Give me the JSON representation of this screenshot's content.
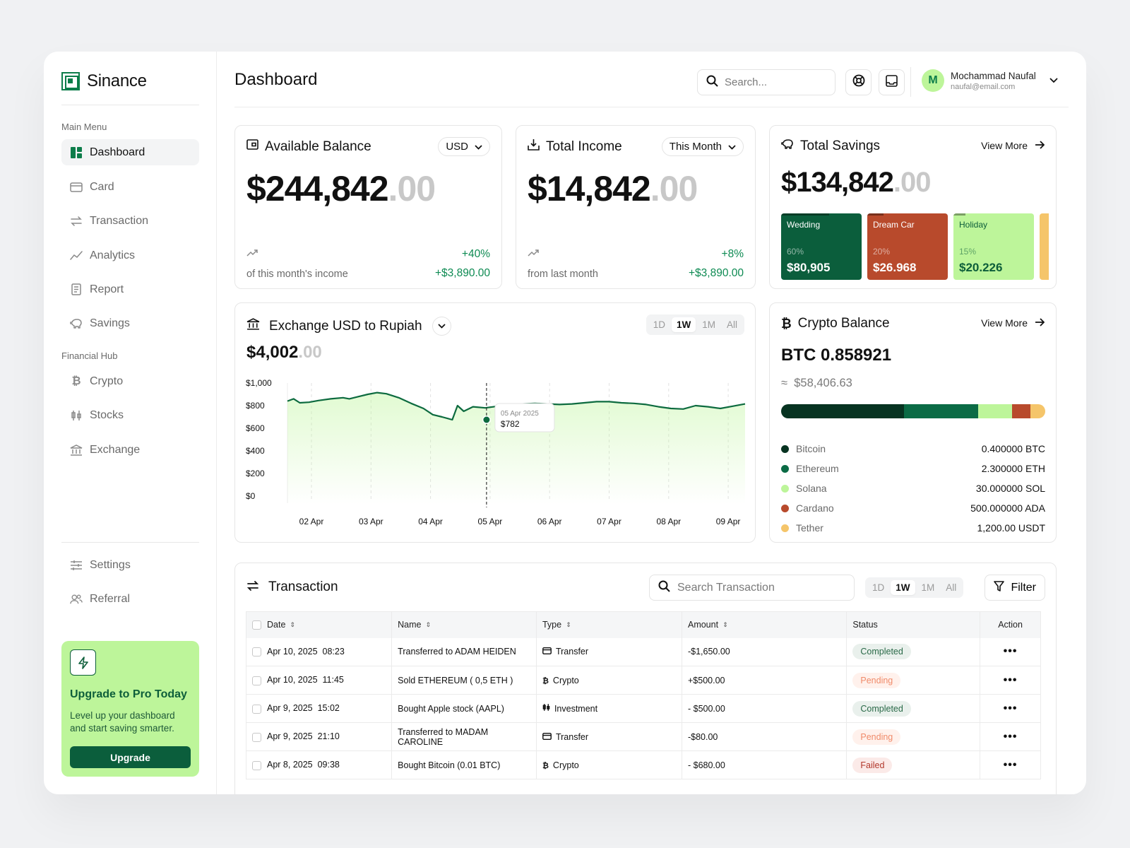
{
  "app": {
    "name": "Sinance"
  },
  "sidebar": {
    "main_title": "Main Menu",
    "main_items": [
      {
        "label": "Dashboard",
        "icon": "dashboard-icon"
      },
      {
        "label": "Card",
        "icon": "card-icon"
      },
      {
        "label": "Transaction",
        "icon": "transfer-icon"
      },
      {
        "label": "Analytics",
        "icon": "analytics-icon"
      },
      {
        "label": "Report",
        "icon": "report-icon"
      },
      {
        "label": "Savings",
        "icon": "piggy-bank-icon"
      }
    ],
    "hub_title": "Financial Hub",
    "hub_items": [
      {
        "label": "Crypto",
        "icon": "bitcoin-icon"
      },
      {
        "label": "Stocks",
        "icon": "candlestick-icon"
      },
      {
        "label": "Exchange",
        "icon": "bank-icon"
      }
    ],
    "bottom_items": [
      {
        "label": "Settings",
        "icon": "sliders-icon"
      },
      {
        "label": "Referral",
        "icon": "users-icon"
      }
    ],
    "upgrade": {
      "title": "Upgrade to Pro Today",
      "description": "Level up your dashboard and start saving smarter.",
      "button": "Upgrade"
    }
  },
  "header": {
    "title": "Dashboard",
    "search_placeholder": "Search...",
    "user": {
      "initial": "M",
      "name": "Mochammad Naufal",
      "email": "naufal@email.com"
    }
  },
  "balance": {
    "title": "Available Balance",
    "currency": "USD",
    "amount": "$244,842",
    "decimals": ".00",
    "change_pct": "+40%",
    "change_amount": "+$3,890.00",
    "caption": "of this month's income"
  },
  "income": {
    "title": "Total Income",
    "period": "This Month",
    "amount": "$14,842",
    "decimals": ".00",
    "change_pct": "+8%",
    "change_amount": "+$3,890.00",
    "caption": "from last month"
  },
  "savings": {
    "title": "Total Savings",
    "view_more": "View More",
    "amount": "$134,842",
    "decimals": ".00",
    "goals": [
      {
        "name": "Wedding",
        "pct": "60%",
        "progress": 0.6,
        "amount": "$80,905",
        "bg": "#0b5e3c",
        "fg": "#ffffff"
      },
      {
        "name": "Dream Car",
        "pct": "20%",
        "progress": 0.2,
        "amount": "$26.968",
        "bg": "#b84a2c",
        "fg": "#ffffff"
      },
      {
        "name": "Holiday",
        "pct": "15%",
        "progress": 0.15,
        "amount": "$20.226",
        "bg": "#bdf59a",
        "fg": "#0d5e3a"
      },
      {
        "name": "",
        "pct": "",
        "progress": 0,
        "amount": "",
        "bg": "#f5c56a",
        "fg": "#111111"
      }
    ]
  },
  "exchange": {
    "title": "Exchange USD to Rupiah",
    "value": "$4,002",
    "decimals": ".00",
    "ranges": [
      "1D",
      "1W",
      "1M",
      "All"
    ],
    "active_range": "1W"
  },
  "chart_data": {
    "type": "area",
    "x": [
      "02 Apr",
      "03 Apr",
      "04 Apr",
      "05 Apr",
      "06 Apr",
      "07 Apr",
      "08 Apr",
      "09 Apr"
    ],
    "yticks": [
      "$1,000",
      "$800",
      "$600",
      "$400",
      "$200",
      "$0"
    ],
    "ylim": [
      0,
      1000
    ],
    "series_points": [
      [
        1.6,
        840
      ],
      [
        1.8,
        860
      ],
      [
        2.0,
        825
      ],
      [
        2.3,
        830
      ],
      [
        2.6,
        845
      ],
      [
        3.0,
        860
      ],
      [
        3.4,
        870
      ],
      [
        3.6,
        860
      ],
      [
        3.9,
        880
      ],
      [
        4.2,
        900
      ],
      [
        4.5,
        915
      ],
      [
        4.8,
        905
      ],
      [
        5.2,
        870
      ],
      [
        5.6,
        820
      ],
      [
        6.0,
        775
      ],
      [
        6.3,
        720
      ],
      [
        6.6,
        700
      ],
      [
        6.93,
        675
      ],
      [
        7.1,
        800
      ],
      [
        7.3,
        750
      ],
      [
        7.6,
        790
      ],
      [
        8.0,
        780
      ],
      [
        8.4,
        795
      ],
      [
        8.8,
        800
      ],
      [
        9.2,
        815
      ],
      [
        9.6,
        820
      ],
      [
        10.0,
        815
      ],
      [
        10.4,
        810
      ],
      [
        10.8,
        815
      ],
      [
        11.2,
        825
      ],
      [
        11.6,
        835
      ],
      [
        12.0,
        835
      ],
      [
        12.4,
        825
      ],
      [
        12.8,
        820
      ],
      [
        13.2,
        810
      ],
      [
        13.6,
        790
      ],
      [
        14.0,
        775
      ],
      [
        14.4,
        770
      ],
      [
        14.8,
        800
      ],
      [
        15.2,
        790
      ],
      [
        15.6,
        775
      ],
      [
        16.0,
        795
      ],
      [
        16.4,
        815
      ]
    ],
    "highlight": {
      "date": "05 Apr 2025",
      "value": "$782"
    },
    "grid": true
  },
  "crypto": {
    "title": "Crypto Balance",
    "view_more": "View More",
    "btc": "BTC 0.858921",
    "usd_prefix": "≈",
    "usd": "$58,406.63",
    "assets": [
      {
        "name": "Bitcoin",
        "value": "0.400000 BTC",
        "color": "#073321",
        "share": 0.465
      },
      {
        "name": "Ethereum",
        "value": "2.300000 ETH",
        "color": "#0b6b45",
        "share": 0.28
      },
      {
        "name": "Solana",
        "value": "30.000000 SOL",
        "color": "#bdf59a",
        "share": 0.13
      },
      {
        "name": "Cardano",
        "value": "500.000000 ADA",
        "color": "#b84a2c",
        "share": 0.07
      },
      {
        "name": "Tether",
        "value": "1,200.00 USDT",
        "color": "#f5c56a",
        "share": 0.055
      }
    ]
  },
  "transactions": {
    "title": "Transaction",
    "search_placeholder": "Search Transaction",
    "ranges": [
      "1D",
      "1W",
      "1M",
      "All"
    ],
    "active_range": "1W",
    "filter": "Filter",
    "columns": [
      "Date",
      "Name",
      "Type",
      "Amount",
      "Status",
      "Action"
    ],
    "rows": [
      {
        "date": "Apr 10, 2025  08:23",
        "name": "Transferred to ADAM HEIDEN",
        "type": "Transfer",
        "type_icon": "card-icon",
        "amount": "-$1,650.00",
        "status": "Completed"
      },
      {
        "date": "Apr 10, 2025  11:45",
        "name": "Sold ETHEREUM ( 0,5 ETH )",
        "type": "Crypto",
        "type_icon": "bitcoin-icon",
        "amount": "+$500.00",
        "status": "Pending"
      },
      {
        "date": "Apr 9, 2025  15:02",
        "name": "Bought Apple stock (AAPL)",
        "type": "Investment",
        "type_icon": "candlestick-icon",
        "amount": "- $500.00",
        "status": "Completed"
      },
      {
        "date": "Apr 9, 2025  21:10",
        "name": "Transferred to MADAM CAROLINE",
        "type": "Transfer",
        "type_icon": "card-icon",
        "amount": "-$80.00",
        "status": "Pending"
      },
      {
        "date": "Apr 8, 2025  09:38",
        "name": "Bought Bitcoin (0.01 BTC)",
        "type": "Crypto",
        "type_icon": "bitcoin-icon",
        "amount": "- $680.00",
        "status": "Failed"
      }
    ]
  },
  "colors": {
    "brand": "#0d7d4a",
    "positive": "#0d8a52",
    "chart_line": "#0d6b3f"
  }
}
